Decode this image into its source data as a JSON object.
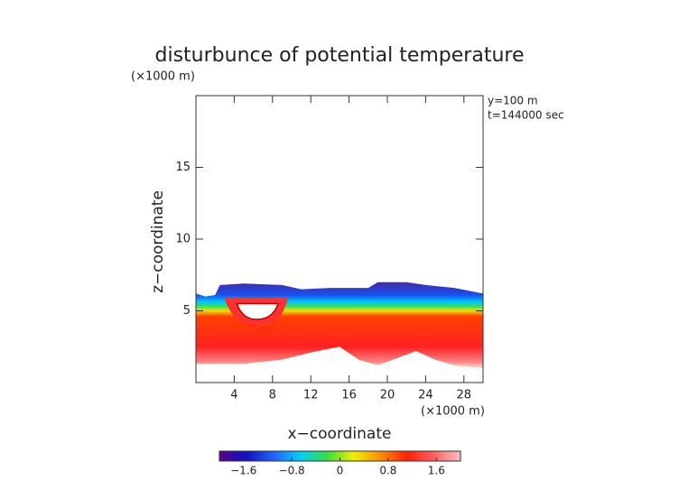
{
  "chart_data": {
    "type": "contour",
    "title": "disturbunce of potential temperature",
    "y_unit": "(×1000 m)",
    "x_unit": "(×1000 m)",
    "annotations": [
      "y=100 m",
      "t=144000 sec"
    ],
    "xlabel": "x−coordinate",
    "ylabel": "z−coordinate",
    "xlim": [
      0,
      30
    ],
    "xticks": [
      4,
      8,
      12,
      16,
      20,
      24,
      28
    ],
    "ylim": [
      0,
      20
    ],
    "yticks": [
      5,
      10,
      15
    ],
    "colorbar": {
      "lim": [
        -2,
        2
      ],
      "ticks": [
        {
          "value": -1.6,
          "label": "−1.6"
        },
        {
          "value": -0.8,
          "label": "−0.8"
        },
        0,
        0.8,
        1.6
      ],
      "colormap": [
        "#5a0090",
        "#1010c0",
        "#2060ff",
        "#00d0ff",
        "#30e040",
        "#f0f000",
        "#ff9000",
        "#ff2000",
        "#ff6060",
        "#ffc0c0"
      ]
    }
  }
}
